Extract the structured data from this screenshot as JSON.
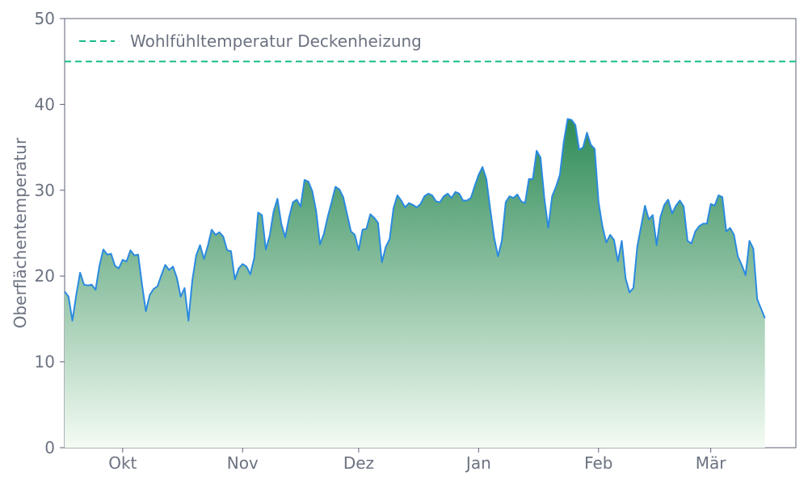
{
  "chart_data": {
    "type": "area",
    "title": "",
    "xlabel": "",
    "ylabel": "Oberflächentemperatur",
    "ylim": [
      0,
      50
    ],
    "yticks": [
      0,
      10,
      20,
      30,
      40,
      50
    ],
    "x_range": [
      "2023-09-16",
      "2024-03-23"
    ],
    "xticks": [
      {
        "date": "2023-10-01",
        "label": "Okt"
      },
      {
        "date": "2023-11-01",
        "label": "Nov"
      },
      {
        "date": "2023-12-01",
        "label": "Dez"
      },
      {
        "date": "2024-01-01",
        "label": "Jan"
      },
      {
        "date": "2024-02-01",
        "label": "Feb"
      },
      {
        "date": "2024-03-01",
        "label": "Mär"
      }
    ],
    "grid": false,
    "legend": {
      "position": "top-left",
      "entries": [
        "Wohlfühltemperatur Deckenheizung"
      ]
    },
    "reference_line": {
      "name": "Wohlfühltemperatur Deckenheizung",
      "value": 45,
      "style": "dashed",
      "color": "#1abc8c"
    },
    "series": [
      {
        "color": "#2a8ae0",
        "fill_top_color": "#2e8b57",
        "fill_bottom_color": "#f4fbf3",
        "start_date": "2023-09-16",
        "step_days": 1,
        "values": [
          18.2,
          17.6,
          14.8,
          17.8,
          20.4,
          19.0,
          18.9,
          19.0,
          18.4,
          21.2,
          23.1,
          22.5,
          22.6,
          21.2,
          20.9,
          21.9,
          21.7,
          23.0,
          22.4,
          22.5,
          19.0,
          15.9,
          17.8,
          18.5,
          18.8,
          20.1,
          21.3,
          20.7,
          21.1,
          19.8,
          17.6,
          18.6,
          14.8,
          19.5,
          22.4,
          23.6,
          22.0,
          23.5,
          25.4,
          24.8,
          25.1,
          24.6,
          23.0,
          22.9,
          19.6,
          20.9,
          21.4,
          21.1,
          20.2,
          22.1,
          27.4,
          27.1,
          23.1,
          24.7,
          27.5,
          29.0,
          26.1,
          24.5,
          26.8,
          28.6,
          28.9,
          28.1,
          31.2,
          31.0,
          29.9,
          27.6,
          23.7,
          24.9,
          26.9,
          28.6,
          30.4,
          30.1,
          29.2,
          27.2,
          25.2,
          24.8,
          23.0,
          25.4,
          25.5,
          27.2,
          26.8,
          26.2,
          21.6,
          23.4,
          24.3,
          27.9,
          29.4,
          28.8,
          28.0,
          28.5,
          28.3,
          28.0,
          28.4,
          29.3,
          29.6,
          29.4,
          28.7,
          28.6,
          29.3,
          29.6,
          29.1,
          29.8,
          29.6,
          28.8,
          28.8,
          29.1,
          30.5,
          31.8,
          32.7,
          31.3,
          27.8,
          24.5,
          22.3,
          24.1,
          28.6,
          29.3,
          29.1,
          29.5,
          28.7,
          28.5,
          31.3,
          31.3,
          34.6,
          33.8,
          29.0,
          25.6,
          29.3,
          30.4,
          31.8,
          35.6,
          38.3,
          38.2,
          37.6,
          34.7,
          35.0,
          36.7,
          35.3,
          34.8,
          28.6,
          25.8,
          23.9,
          24.8,
          24.2,
          21.7,
          24.1,
          19.7,
          18.1,
          18.6,
          23.4,
          25.8,
          28.2,
          26.6,
          27.1,
          23.6,
          26.9,
          28.3,
          28.9,
          27.3,
          28.2,
          28.8,
          28.1,
          24.1,
          23.8,
          25.2,
          25.8,
          26.1,
          26.1,
          28.4,
          28.2,
          29.4,
          29.2,
          25.2,
          25.6,
          24.8,
          22.3,
          21.3,
          20.1,
          24.1,
          23.2,
          17.3,
          16.2,
          15.1
        ]
      }
    ]
  }
}
